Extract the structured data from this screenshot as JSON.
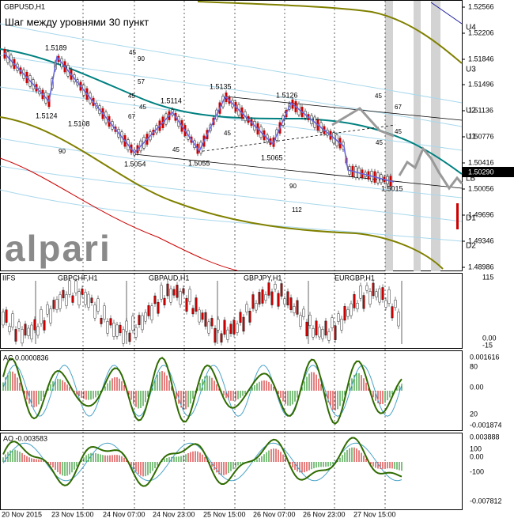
{
  "main_pane": {
    "symbol": "GBPUSD,H1",
    "note": "Шаг между уровнями 30 пункт",
    "watermark": "alpari",
    "price_axis": [
      "1.52566",
      "1.52206",
      "1.51846",
      "1.51496",
      "1.51136",
      "1.50776",
      "1.50416",
      "1.50056",
      "1.49696",
      "1.49346",
      "1.48986"
    ],
    "current_price": "1.50290",
    "levels": [
      "U4",
      "U3",
      "U2",
      "U1",
      "LB",
      "D1",
      "D2"
    ],
    "swing_labels": [
      "1.5189",
      "1.5124",
      "1.5108",
      "1.5114",
      "1.5054",
      "1.5135",
      "1.5055",
      "1.5126",
      "1.5065",
      "1.5015"
    ],
    "angle_labels": [
      "45",
      "90",
      "57",
      "45",
      "45",
      "67",
      "90",
      "45",
      "45",
      "45",
      "67",
      "45",
      "45",
      "90",
      "112"
    ]
  },
  "symbols_pane": {
    "labels": [
      "IIFS",
      "GBPCHF,H1",
      "GBPAUD,H1",
      "GBPJPY,H1",
      "EURGBP,H1"
    ],
    "axis": [
      "115",
      "0.00",
      "-15"
    ]
  },
  "ac_pane": {
    "title": "AC 0.0000836",
    "axis": [
      "0.001616",
      "80",
      "0.00",
      "20",
      "-0.001874"
    ]
  },
  "ao_pane": {
    "title": "AO -0.003583",
    "axis": [
      "0.003888",
      "100",
      "0.00",
      "-100",
      "-0.007812"
    ]
  },
  "time_axis": [
    "20 Nov 2015",
    "23 Nov 15:00",
    "24 Nov 07:00",
    "24 Nov 23:00",
    "25 Nov 15:00",
    "26 Nov 07:00",
    "26 Nov 23:00",
    "27 Nov 15:00"
  ]
}
